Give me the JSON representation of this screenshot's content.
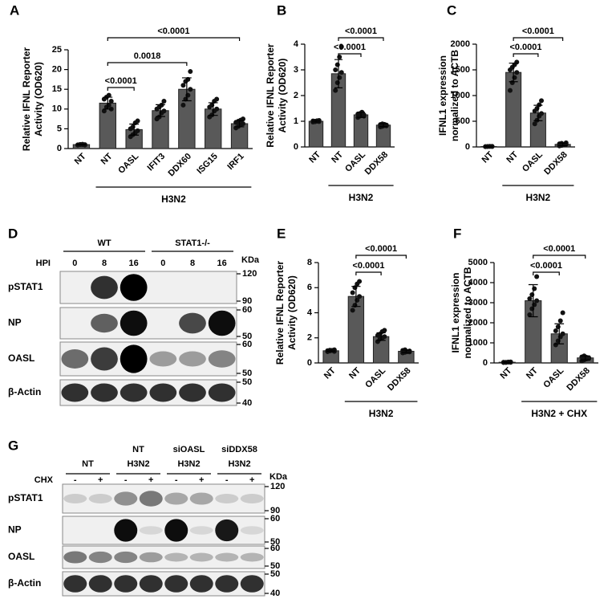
{
  "chart_data": [
    {
      "type": "bar",
      "panel_label": "A",
      "ylabel": [
        "Relative IFNL Reporter",
        "Activity (OD620)"
      ],
      "categories": [
        "NT",
        "NT",
        "OASL",
        "IFIT3",
        "DDX60",
        "ISG15",
        "IRF1"
      ],
      "values": [
        1,
        11.5,
        4.8,
        9.6,
        15,
        10,
        6.3
      ],
      "errors": [
        0.1,
        1.5,
        1.4,
        1.5,
        2.9,
        1.6,
        0.8
      ],
      "points": [
        [
          0.9,
          1.0,
          1.1,
          1.0,
          0.95,
          1.05,
          1.0,
          0.9
        ],
        [
          9.5,
          10.5,
          11,
          12,
          12.5,
          13,
          13.5,
          10
        ],
        [
          3,
          3.5,
          4,
          4.5,
          5,
          5.5,
          6.5,
          7
        ],
        [
          7.5,
          8,
          9,
          9.5,
          10,
          10.5,
          11,
          12
        ],
        [
          11,
          12.5,
          13.5,
          15,
          16,
          17,
          17.5,
          19.5
        ],
        [
          8,
          8.5,
          9.5,
          10,
          10.5,
          11,
          12,
          12.5
        ],
        [
          5.2,
          5.6,
          6,
          6.3,
          6.6,
          6.9,
          7.2,
          7.5
        ]
      ],
      "color": "#595959",
      "ylim": [
        0,
        25
      ],
      "yticks": [
        0,
        5,
        10,
        15,
        20,
        25
      ],
      "comparisons": [
        {
          "categories": [
            1,
            2
          ],
          "label": "<0.0001"
        },
        {
          "categories": [
            1,
            4
          ],
          "label": "0.0018"
        },
        {
          "categories": [
            1,
            6
          ],
          "label": "<0.0001"
        }
      ],
      "group": {
        "label": "H3N2",
        "categories": [
          1,
          6
        ]
      }
    },
    {
      "type": "bar",
      "panel_label": "B",
      "ylabel": [
        "Relative IFNL Reporter",
        "Activity (OD620)"
      ],
      "categories": [
        "NT",
        "NT",
        "OASL",
        "DDX58"
      ],
      "values": [
        1.0,
        2.85,
        1.25,
        0.85
      ],
      "errors": [
        0.03,
        0.55,
        0.1,
        0.06
      ],
      "points": [
        [
          0.97,
          1.0,
          1.02,
          0.99,
          1.01,
          0.98,
          1.0,
          1.03
        ],
        [
          2.2,
          2.5,
          2.7,
          2.9,
          3.0,
          3.2,
          3.5,
          3.9
        ],
        [
          1.15,
          1.2,
          1.22,
          1.25,
          1.28,
          1.3,
          1.35,
          1.2
        ],
        [
          0.78,
          0.8,
          0.83,
          0.85,
          0.87,
          0.9,
          0.88,
          0.82
        ]
      ],
      "color": "#595959",
      "ylim": [
        0,
        4
      ],
      "yticks": [
        0,
        1,
        2,
        3,
        4
      ],
      "comparisons": [
        {
          "categories": [
            1,
            2
          ],
          "label": "<0.0001"
        },
        {
          "categories": [
            1,
            3
          ],
          "label": "<0.0001"
        }
      ],
      "group": {
        "label": "H3N2",
        "categories": [
          1,
          3
        ]
      }
    },
    {
      "type": "bar",
      "panel_label": "C",
      "ylabel": [
        "IFNL1 expression",
        "normalized to ACTB"
      ],
      "categories": [
        "NT",
        "NT",
        "OASL",
        "DDX58"
      ],
      "values": [
        8,
        1450,
        660,
        50
      ],
      "errors": [
        3,
        180,
        150,
        25
      ],
      "points": [
        [
          5,
          8,
          10,
          12,
          6,
          9,
          11,
          7
        ],
        [
          1100,
          1250,
          1350,
          1450,
          1500,
          1550,
          1600,
          1650
        ],
        [
          450,
          520,
          600,
          650,
          700,
          750,
          820,
          900
        ],
        [
          20,
          30,
          40,
          50,
          60,
          70,
          45,
          80
        ]
      ],
      "color": "#595959",
      "ylim": [
        0,
        2000
      ],
      "yticks": [
        0,
        500,
        1000,
        1500,
        2000
      ],
      "comparisons": [
        {
          "categories": [
            1,
            2
          ],
          "label": "<0.0001"
        },
        {
          "categories": [
            1,
            3
          ],
          "label": "<0.0001"
        }
      ],
      "group": {
        "label": "H3N2",
        "categories": [
          1,
          3
        ]
      }
    },
    {
      "type": "bar",
      "panel_label": "E",
      "ylabel": [
        "Relative IFNL Reporter",
        "Activity (OD620)"
      ],
      "categories": [
        "NT",
        "NT",
        "OASL",
        "DDX58"
      ],
      "values": [
        0.97,
        5.3,
        2.1,
        0.93
      ],
      "errors": [
        0.05,
        0.8,
        0.3,
        0.1
      ],
      "points": [
        [
          0.9,
          0.95,
          1,
          1.05,
          0.98,
          1.02,
          1.0,
          0.92
        ],
        [
          4.2,
          4.6,
          5,
          5.3,
          5.6,
          6,
          6.3,
          6.5
        ],
        [
          1.7,
          1.9,
          2,
          2.1,
          2.2,
          2.3,
          2.5,
          2.6
        ],
        [
          0.8,
          0.85,
          0.9,
          0.95,
          1.0,
          1.05,
          0.9,
          0.88
        ]
      ],
      "color": "#595959",
      "ylim": [
        0,
        8
      ],
      "yticks": [
        0,
        2,
        4,
        6,
        8
      ],
      "comparisons": [
        {
          "categories": [
            1,
            2
          ],
          "label": "<0.0001"
        },
        {
          "categories": [
            1,
            3
          ],
          "label": "<0.0001"
        }
      ],
      "group": {
        "label": "H3N2",
        "categories": [
          1,
          3
        ]
      }
    },
    {
      "type": "bar",
      "panel_label": "F",
      "ylabel": [
        "IFNL1 expression",
        "normalized to ACTB"
      ],
      "categories": [
        "NT",
        "NT",
        "OASL",
        "DDX58"
      ],
      "values": [
        35,
        3100,
        1450,
        250
      ],
      "errors": [
        10,
        800,
        500,
        100
      ],
      "points": [
        [
          20,
          30,
          40,
          50,
          35,
          25,
          45,
          30
        ],
        [
          2400,
          2700,
          2900,
          3100,
          3200,
          3400,
          3700,
          4300
        ],
        [
          900,
          1100,
          1300,
          1450,
          1600,
          1800,
          2100,
          2500
        ],
        [
          100,
          150,
          200,
          250,
          300,
          350,
          280,
          220
        ]
      ],
      "color": "#595959",
      "ylim": [
        0,
        5000
      ],
      "yticks": [
        0,
        1000,
        2000,
        3000,
        4000,
        5000
      ],
      "comparisons": [
        {
          "categories": [
            1,
            2
          ],
          "label": "<0.0001"
        },
        {
          "categories": [
            1,
            3
          ],
          "label": "<0.0001"
        }
      ],
      "group": {
        "label": "H3N2 + CHX",
        "categories": [
          1,
          3
        ]
      }
    }
  ],
  "blots": [
    {
      "panel_label": "D",
      "groups": [
        [
          "WT"
        ],
        [
          "STAT1-/-"
        ]
      ],
      "lane_row_label": "HPI",
      "lanes": [
        "0",
        "8",
        "16",
        "0",
        "8",
        "16"
      ],
      "unit": "KDa",
      "rows": [
        {
          "label": "pSTAT1",
          "markers": [
            120,
            90
          ]
        },
        {
          "label": "NP",
          "markers": [
            60,
            50
          ]
        },
        {
          "label": "OASL",
          "markers": [
            60,
            50
          ]
        },
        {
          "label": "β-Actin",
          "markers": [
            50,
            40
          ]
        }
      ]
    },
    {
      "panel_label": "G",
      "groups": [
        [
          "NT"
        ],
        [
          "NT",
          "H3N2"
        ],
        [
          "siOASL",
          "H3N2"
        ],
        [
          "siDDX58",
          "H3N2"
        ]
      ],
      "lane_row_label": "CHX",
      "lanes": [
        "-",
        "+",
        "-",
        "+",
        "-",
        "+",
        "-",
        "+"
      ],
      "unit": "KDa",
      "rows": [
        {
          "label": "pSTAT1",
          "markers": [
            120,
            90
          ]
        },
        {
          "label": "NP",
          "markers": [
            60,
            50
          ]
        },
        {
          "label": "OASL",
          "markers": [
            60,
            50
          ]
        },
        {
          "label": "β-Actin",
          "markers": [
            50,
            40
          ]
        }
      ]
    }
  ]
}
